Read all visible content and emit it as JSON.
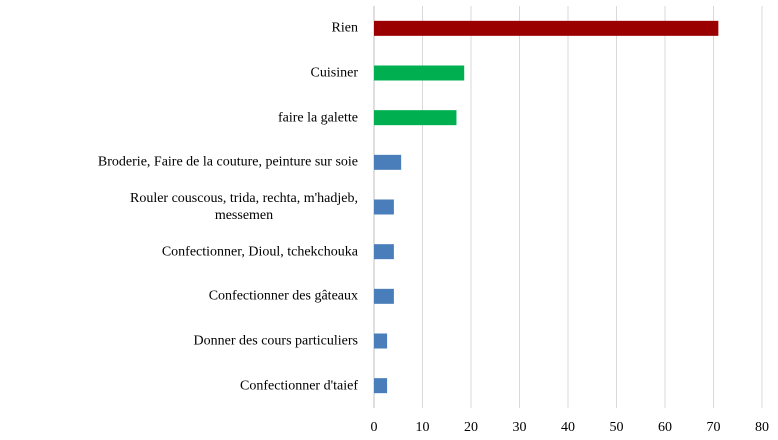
{
  "chart_data": {
    "type": "barh",
    "categories": [
      "Rien",
      "Cuisiner",
      "faire la galette",
      "Broderie,  Faire de la couture, peinture sur soie",
      "Rouler couscous, trida, rechta, m'hadjeb,\nmessemen",
      "Confectionner, Dioul, tchekchouka",
      "Confectionner des gâteaux",
      "Donner des cours particuliers",
      "Confectionner d'taief"
    ],
    "values": [
      71,
      18.6,
      17,
      5.6,
      4.1,
      4.1,
      4.1,
      2.7,
      2.7
    ],
    "colors": [
      "#9b0000",
      "#00b050",
      "#00b050",
      "#4a7ebb",
      "#4a7ebb",
      "#4a7ebb",
      "#4a7ebb",
      "#4a7ebb",
      "#4a7ebb"
    ],
    "xlim": [
      0,
      80
    ],
    "xticks": [
      0,
      10,
      20,
      30,
      40,
      50,
      60,
      70,
      80
    ],
    "grid": true
  }
}
